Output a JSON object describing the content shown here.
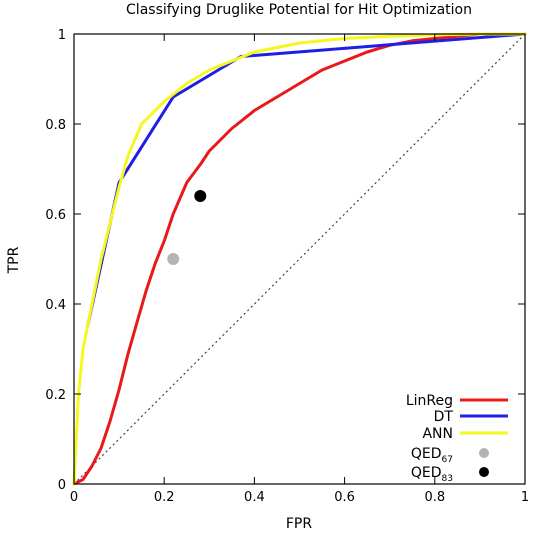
{
  "chart_data": {
    "type": "line",
    "title": "Classifying Druglike Potential for Hit Optimization",
    "xlabel": "FPR",
    "ylabel": "TPR",
    "xlim": [
      0,
      1
    ],
    "ylim": [
      0,
      1
    ],
    "xticks": [
      0,
      0.2,
      0.4,
      0.6,
      0.8,
      1
    ],
    "yticks": [
      0,
      0.2,
      0.4,
      0.6,
      0.8,
      1
    ],
    "xtick_labels": [
      "0",
      "0.2",
      "0.4",
      "0.6",
      "0.8",
      "1"
    ],
    "ytick_labels": [
      "0",
      "0.2",
      "0.4",
      "0.6",
      "0.8",
      "1"
    ],
    "grid": false,
    "legend_position": "bottom-right",
    "diagonal_reference": true,
    "series": [
      {
        "name": "LinReg",
        "color": "#e8191b",
        "x": [
          0,
          0.02,
          0.04,
          0.06,
          0.08,
          0.1,
          0.12,
          0.14,
          0.16,
          0.18,
          0.2,
          0.22,
          0.25,
          0.28,
          0.3,
          0.35,
          0.4,
          0.45,
          0.5,
          0.55,
          0.6,
          0.65,
          0.7,
          0.75,
          0.8,
          0.85,
          0.9,
          0.95,
          1
        ],
        "y": [
          0,
          0.01,
          0.04,
          0.08,
          0.14,
          0.21,
          0.29,
          0.36,
          0.43,
          0.49,
          0.54,
          0.6,
          0.67,
          0.71,
          0.74,
          0.79,
          0.83,
          0.86,
          0.89,
          0.92,
          0.94,
          0.96,
          0.975,
          0.985,
          0.99,
          0.995,
          1,
          1,
          1
        ]
      },
      {
        "name": "DT",
        "color": "#1e1ee6",
        "x": [
          0.03,
          0.1,
          0.22,
          0.37,
          1
        ],
        "y": [
          0.35,
          0.67,
          0.86,
          0.95,
          1
        ]
      },
      {
        "name": "ANN",
        "color": "#f6f621",
        "x": [
          0,
          0.005,
          0.01,
          0.02,
          0.04,
          0.06,
          0.08,
          0.1,
          0.12,
          0.15,
          0.2,
          0.25,
          0.3,
          0.35,
          0.4,
          0.5,
          0.6,
          0.7,
          0.8,
          0.9,
          1
        ],
        "y": [
          0,
          0.1,
          0.2,
          0.3,
          0.4,
          0.5,
          0.58,
          0.66,
          0.73,
          0.8,
          0.85,
          0.89,
          0.92,
          0.94,
          0.96,
          0.98,
          0.99,
          0.995,
          0.998,
          1,
          1
        ]
      }
    ],
    "points": [
      {
        "name_base": "QED",
        "name_sub": "67",
        "x": 0.22,
        "y": 0.5,
        "color": "#b4b4b4"
      },
      {
        "name_base": "QED",
        "name_sub": "83",
        "x": 0.28,
        "y": 0.64,
        "color": "#000000"
      }
    ]
  }
}
